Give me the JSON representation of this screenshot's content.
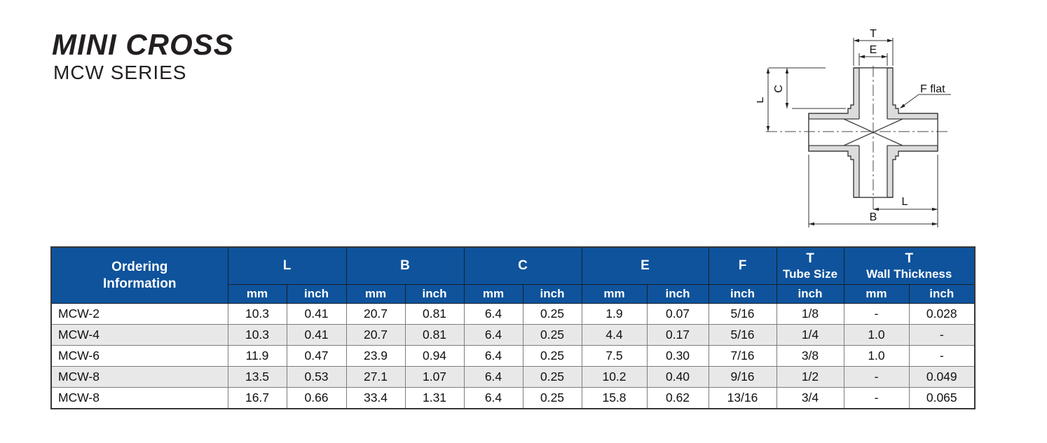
{
  "title": "MINI CROSS",
  "subtitle": "MCW SERIES",
  "colors": {
    "header_blue": "#0e539c",
    "row_stripe": "#e8e8e8",
    "part_fill": "#dcdcdc"
  },
  "diagram": {
    "dim_t": "T",
    "dim_e": "E",
    "dim_c": "C",
    "dim_l_left": "L",
    "dim_l_bottom": "L",
    "dim_b": "B",
    "flat_label": "F flat"
  },
  "table": {
    "ordering_header": [
      "Ordering",
      "Information"
    ],
    "groups": [
      {
        "label": "L",
        "sub": [
          "mm",
          "inch"
        ]
      },
      {
        "label": "B",
        "sub": [
          "mm",
          "inch"
        ]
      },
      {
        "label": "C",
        "sub": [
          "mm",
          "inch"
        ]
      },
      {
        "label": "E",
        "sub": [
          "mm",
          "inch"
        ]
      },
      {
        "label": "F",
        "sub": [
          "inch"
        ]
      },
      {
        "label": "T",
        "sublabel": "Tube Size",
        "sub": [
          "inch"
        ]
      },
      {
        "label": "T",
        "sublabel": "Wall Thickness",
        "sub": [
          "mm",
          "inch"
        ]
      }
    ],
    "sub": [
      "mm",
      "inch",
      "mm",
      "inch",
      "mm",
      "inch",
      "mm",
      "inch",
      "inch",
      "inch",
      "mm",
      "inch"
    ],
    "rows": [
      {
        "model": "MCW-2",
        "values": [
          "10.3",
          "0.41",
          "20.7",
          "0.81",
          "6.4",
          "0.25",
          "1.9",
          "0.07",
          "5/16",
          "1/8",
          "-",
          "0.028"
        ]
      },
      {
        "model": "MCW-4",
        "values": [
          "10.3",
          "0.41",
          "20.7",
          "0.81",
          "6.4",
          "0.25",
          "4.4",
          "0.17",
          "5/16",
          "1/4",
          "1.0",
          "-"
        ]
      },
      {
        "model": "MCW-6",
        "values": [
          "11.9",
          "0.47",
          "23.9",
          "0.94",
          "6.4",
          "0.25",
          "7.5",
          "0.30",
          "7/16",
          "3/8",
          "1.0",
          "-"
        ]
      },
      {
        "model": "MCW-8",
        "values": [
          "13.5",
          "0.53",
          "27.1",
          "1.07",
          "6.4",
          "0.25",
          "10.2",
          "0.40",
          "9/16",
          "1/2",
          "-",
          "0.049"
        ]
      },
      {
        "model": "MCW-8",
        "values": [
          "16.7",
          "0.66",
          "33.4",
          "1.31",
          "6.4",
          "0.25",
          "15.8",
          "0.62",
          "13/16",
          "3/4",
          "-",
          "0.065"
        ]
      }
    ]
  }
}
